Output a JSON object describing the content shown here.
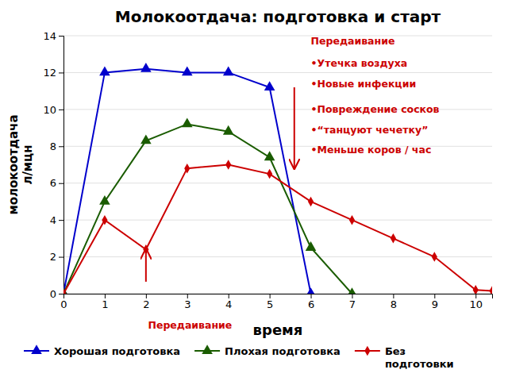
{
  "chart_data": {
    "type": "line",
    "title": "Молокоотдача: подготовка и старт",
    "xlabel": "время",
    "ylabel": "молокоотдача\nл/мцн",
    "xlim": [
      0,
      10.4
    ],
    "ylim": [
      0,
      14
    ],
    "xticks": [
      0,
      1,
      2,
      3,
      4,
      5,
      6,
      7,
      8,
      9,
      10
    ],
    "yticks": [
      0,
      2,
      4,
      6,
      8,
      10,
      12,
      14
    ],
    "grid": "y",
    "legend": "bottom",
    "series": [
      {
        "name": "Хорошая подготовка",
        "color": "#0000cc",
        "marker": "triangle",
        "x": [
          0,
          1,
          2,
          3,
          4,
          5,
          6
        ],
        "values": [
          0,
          12,
          12.2,
          12,
          12,
          11.2,
          0
        ]
      },
      {
        "name": "Плохая подготовка",
        "color": "#1a5c00",
        "marker": "triangle",
        "x": [
          0,
          1,
          2,
          3,
          4,
          5,
          6,
          7
        ],
        "values": [
          0,
          5,
          8.3,
          9.2,
          8.8,
          7.4,
          2.5,
          0
        ]
      },
      {
        "name": "Без\nподготовки",
        "color": "#cc0000",
        "marker": "diamond",
        "x": [
          0,
          1,
          2,
          3,
          4,
          5,
          6,
          7,
          8,
          9,
          10,
          10.4
        ],
        "values": [
          0,
          4,
          2.4,
          6.8,
          7.0,
          6.5,
          5.0,
          4.0,
          3.0,
          2.0,
          0.2,
          0.15
        ]
      }
    ],
    "arrows": [
      {
        "from": [
          2,
          0.65
        ],
        "to": [
          2,
          2.4
        ],
        "color": "#cc0000"
      },
      {
        "from": [
          5.6,
          11.2
        ],
        "to": [
          5.6,
          6.8
        ],
        "color": "#cc0000"
      }
    ],
    "annotations": [
      {
        "text": "Передаивание",
        "x": 2.05,
        "y": -1.5,
        "color": "#cc0000"
      },
      {
        "text": "Передаивание",
        "x": 6.0,
        "y": 13.7,
        "color": "#cc0000"
      },
      {
        "text": "•Утечка воздуха",
        "x": 6.0,
        "y": 12.5,
        "color": "#cc0000"
      },
      {
        "text": "•Новые инфекции",
        "x": 6.0,
        "y": 11.4,
        "color": "#cc0000"
      },
      {
        "text": "•Повреждение сосков",
        "x": 6.0,
        "y": 10.0,
        "color": "#cc0000"
      },
      {
        "text": "•“танцуют чечетку”",
        "x": 6.0,
        "y": 8.9,
        "color": "#cc0000"
      },
      {
        "text": "•Меньше коров / час",
        "x": 6.0,
        "y": 7.8,
        "color": "#cc0000"
      }
    ]
  }
}
